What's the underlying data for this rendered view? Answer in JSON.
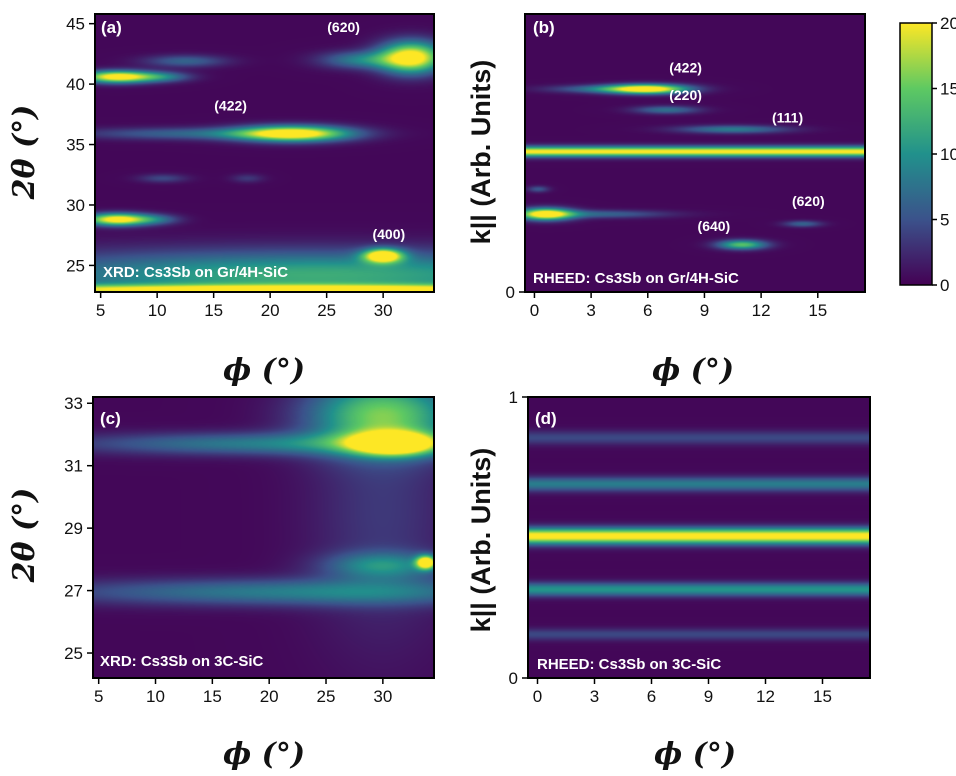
{
  "chart_data": [
    {
      "id": "a",
      "type": "heatmap",
      "panel_label": "(a)",
      "caption": "XRD: Cs3Sb on Gr/4H-SiC",
      "xlabel": "ϕ (°)",
      "ylabel": "2θ (°)",
      "xlim": [
        4.5,
        34.5
      ],
      "ylim": [
        22.8,
        45.8
      ],
      "xticks": [
        5,
        10,
        15,
        20,
        25,
        30
      ],
      "yticks": [
        25,
        30,
        35,
        40,
        45
      ],
      "annotations": [
        {
          "text": "(620)",
          "x": 26.5,
          "y": 44.3
        },
        {
          "text": "(422)",
          "x": 16.5,
          "y": 37.8
        },
        {
          "text": "(400)",
          "x": 30.5,
          "y": 27.2
        }
      ],
      "features": [
        {
          "x": 6.5,
          "y": 40.6,
          "sx": 2.2,
          "sy": 0.35,
          "v": 22
        },
        {
          "x": 10.5,
          "y": 40.6,
          "sx": 1.8,
          "sy": 0.3,
          "v": 7
        },
        {
          "x": 12.5,
          "y": 41.9,
          "sx": 2.5,
          "sy": 0.35,
          "v": 6
        },
        {
          "x": 22.0,
          "y": 35.9,
          "sx": 3.5,
          "sy": 0.45,
          "v": 22
        },
        {
          "x": 13.0,
          "y": 35.9,
          "sx": 7.0,
          "sy": 0.35,
          "v": 6
        },
        {
          "x": 10.5,
          "y": 32.2,
          "sx": 1.5,
          "sy": 0.25,
          "v": 4
        },
        {
          "x": 18.0,
          "y": 32.2,
          "sx": 1.0,
          "sy": 0.25,
          "v": 3
        },
        {
          "x": 6.5,
          "y": 28.8,
          "sx": 2.0,
          "sy": 0.35,
          "v": 22
        },
        {
          "x": 10.0,
          "y": 28.8,
          "sx": 1.5,
          "sy": 0.3,
          "v": 5
        },
        {
          "x": 32.5,
          "y": 42.2,
          "sx": 2.0,
          "sy": 0.9,
          "v": 22
        },
        {
          "x": 28.0,
          "y": 42.0,
          "sx": 2.5,
          "sy": 0.5,
          "v": 8
        },
        {
          "x": 30.0,
          "y": 25.8,
          "sx": 1.2,
          "sy": 0.4,
          "v": 22
        },
        {
          "x": 24.0,
          "y": 24.2,
          "sx": 20.0,
          "sy": 1.4,
          "v": 12
        },
        {
          "x": 20.0,
          "y": 23.0,
          "sx": 30.0,
          "sy": 0.3,
          "v": 16
        }
      ]
    },
    {
      "id": "b",
      "type": "heatmap",
      "panel_label": "(b)",
      "caption": "RHEED: Cs3Sb on Gr/4H-SiC",
      "xlabel": "ϕ (°)",
      "ylabel": "k|| (Arb. Units)",
      "xlim": [
        -0.5,
        17.5
      ],
      "ylim": [
        0,
        1
      ],
      "xticks": [
        0,
        3,
        6,
        9,
        12,
        15
      ],
      "yticks": [
        0
      ],
      "annotations": [
        {
          "text": "(422)",
          "x": 8.0,
          "y": 0.79
        },
        {
          "text": "(220)",
          "x": 8.0,
          "y": 0.69
        },
        {
          "text": "(111)",
          "x": 13.4,
          "y": 0.61
        },
        {
          "text": "(620)",
          "x": 14.5,
          "y": 0.31
        },
        {
          "text": "(640)",
          "x": 9.5,
          "y": 0.22
        }
      ],
      "features": [
        {
          "x": 6.0,
          "y": 0.73,
          "sx": 1.5,
          "sy": 0.012,
          "v": 22
        },
        {
          "x": 3.5,
          "y": 0.73,
          "sx": 2.0,
          "sy": 0.01,
          "v": 6
        },
        {
          "x": 7.0,
          "y": 0.655,
          "sx": 1.2,
          "sy": 0.01,
          "v": 7
        },
        {
          "x": 10.5,
          "y": 0.585,
          "sx": 2.0,
          "sy": 0.01,
          "v": 8
        },
        {
          "x": 8.5,
          "y": 0.505,
          "sx": 18.0,
          "sy": 0.013,
          "v": 20,
          "flat": true
        },
        {
          "x": 0.6,
          "y": 0.28,
          "sx": 1.0,
          "sy": 0.015,
          "v": 22
        },
        {
          "x": 3.5,
          "y": 0.28,
          "sx": 2.5,
          "sy": 0.01,
          "v": 6
        },
        {
          "x": 11.0,
          "y": 0.17,
          "sx": 0.9,
          "sy": 0.012,
          "v": 14
        },
        {
          "x": 14.2,
          "y": 0.245,
          "sx": 0.7,
          "sy": 0.008,
          "v": 6
        },
        {
          "x": 0.2,
          "y": 0.37,
          "sx": 0.4,
          "sy": 0.008,
          "v": 5
        }
      ]
    },
    {
      "id": "c",
      "type": "heatmap",
      "panel_label": "(c)",
      "caption": "XRD: Cs3Sb on 3C-SiC",
      "xlabel": "ϕ (°)",
      "ylabel": "2θ (°)",
      "xlim": [
        4.5,
        34.5
      ],
      "ylim": [
        24.2,
        33.2
      ],
      "xticks": [
        5,
        10,
        15,
        20,
        25,
        30
      ],
      "yticks": [
        25,
        27,
        29,
        31,
        33
      ],
      "features": [
        {
          "x": 31.0,
          "y": 31.7,
          "sx": 2.5,
          "sy": 0.25,
          "v": 22
        },
        {
          "x": 20.0,
          "y": 31.7,
          "sx": 12.0,
          "sy": 0.25,
          "v": 8
        },
        {
          "x": 30.0,
          "y": 32.6,
          "sx": 4.5,
          "sy": 0.8,
          "v": 14
        },
        {
          "x": 33.8,
          "y": 27.9,
          "sx": 0.6,
          "sy": 0.15,
          "v": 22
        },
        {
          "x": 30.0,
          "y": 27.8,
          "sx": 3.5,
          "sy": 0.3,
          "v": 8
        },
        {
          "x": 22.0,
          "y": 26.95,
          "sx": 15.0,
          "sy": 0.3,
          "v": 8
        },
        {
          "x": 30.0,
          "y": 29.5,
          "sx": 4.5,
          "sy": 3.0,
          "v": 3
        }
      ]
    },
    {
      "id": "d",
      "type": "heatmap",
      "panel_label": "(d)",
      "caption": "RHEED: Cs3Sb on 3C-SiC",
      "xlabel": "ϕ (°)",
      "ylabel": "k|| (Arb. Units)",
      "xlim": [
        -0.5,
        17.5
      ],
      "ylim": [
        0,
        1
      ],
      "xticks": [
        0,
        3,
        6,
        9,
        12,
        15
      ],
      "yticks": [
        0,
        1
      ],
      "features": [
        {
          "x": 8.5,
          "y": 0.855,
          "sx": 18.0,
          "sy": 0.018,
          "v": 4,
          "flat": true
        },
        {
          "x": 8.5,
          "y": 0.69,
          "sx": 18.0,
          "sy": 0.018,
          "v": 8,
          "flat": true
        },
        {
          "x": 8.5,
          "y": 0.505,
          "sx": 18.0,
          "sy": 0.02,
          "v": 21,
          "flat": true
        },
        {
          "x": 8.5,
          "y": 0.315,
          "sx": 18.0,
          "sy": 0.017,
          "v": 10,
          "flat": true
        },
        {
          "x": 8.5,
          "y": 0.155,
          "sx": 18.0,
          "sy": 0.015,
          "v": 4,
          "flat": true
        }
      ]
    }
  ],
  "colorbar": {
    "min": 0,
    "max": 20,
    "ticks": [
      0,
      5,
      10,
      15,
      20
    ],
    "colors": [
      "#440154",
      "#3b528b",
      "#21918c",
      "#5ec962",
      "#fde725"
    ]
  }
}
